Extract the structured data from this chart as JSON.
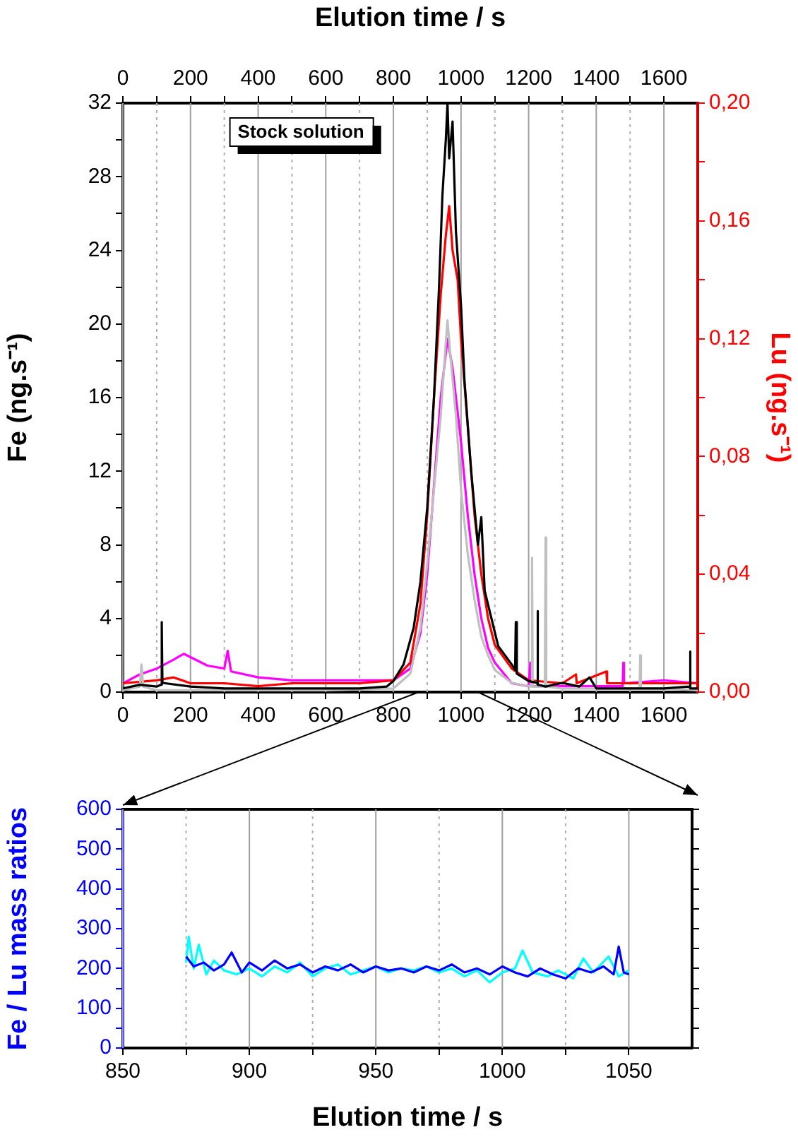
{
  "chart_data": [
    {
      "type": "line",
      "x2label": "Elution time / s",
      "ylabel": "Fe (ng.s⁻¹)",
      "y2label": "Lu (ng.s⁻¹)",
      "annotations": [
        "Stock solution"
      ],
      "xlim": [
        0,
        1700
      ],
      "x2lim": [
        0,
        1700
      ],
      "xticks": [
        0,
        {
          "value": 100,
          "label": null
        },
        200,
        {
          "value": 300,
          "label": null
        },
        400,
        {
          "value": 500,
          "label": null
        },
        600,
        {
          "value": 700,
          "label": null
        },
        800,
        {
          "value": 900,
          "label": null
        },
        1000,
        {
          "value": 1100,
          "label": null
        },
        1200,
        {
          "value": 1300,
          "label": null
        },
        1400,
        {
          "value": 1500,
          "label": null
        },
        1600
      ],
      "x2ticks": [
        0,
        {
          "value": 100,
          "label": null
        },
        200,
        {
          "value": 300,
          "label": null
        },
        400,
        {
          "value": 500,
          "label": null
        },
        600,
        {
          "value": 700,
          "label": null
        },
        800,
        {
          "value": 900,
          "label": null
        },
        1000,
        {
          "value": 1100,
          "label": null
        },
        1200,
        {
          "value": 1300,
          "label": null
        },
        1400,
        {
          "value": 1500,
          "label": null
        },
        1600
      ],
      "ylim": [
        0,
        32
      ],
      "yticks": [
        0,
        {
          "value": 2,
          "label": null
        },
        4,
        {
          "value": 6,
          "label": null
        },
        8,
        {
          "value": 10,
          "label": null
        },
        12,
        {
          "value": 14,
          "label": null
        },
        16,
        {
          "value": 18,
          "label": null
        },
        20,
        {
          "value": 22,
          "label": null
        },
        24,
        {
          "value": 26,
          "label": null
        },
        28,
        {
          "value": 30,
          "label": null
        },
        32
      ],
      "y2lim": [
        0,
        0.2
      ],
      "y2ticks": [
        {
          "value": 0,
          "label": "0,00"
        },
        {
          "value": 0.02,
          "label": null
        },
        {
          "value": 0.04,
          "label": "0,04"
        },
        {
          "value": 0.06,
          "label": null
        },
        {
          "value": 0.08,
          "label": "0,08"
        },
        {
          "value": 0.1,
          "label": null
        },
        {
          "value": 0.12,
          "label": "0,12"
        },
        {
          "value": 0.14,
          "label": null
        },
        {
          "value": 0.16,
          "label": "0,16"
        },
        {
          "value": 0.18,
          "label": null
        },
        {
          "value": 0.2,
          "label": "0,20"
        }
      ],
      "grid": "x",
      "series": [
        {
          "color": "#000000",
          "x": [
            0,
            50,
            100,
            113,
            115,
            117,
            200,
            300,
            400,
            500,
            600,
            700,
            780,
            800,
            830,
            860,
            880,
            900,
            920,
            935,
            945,
            955,
            960,
            965,
            975,
            985,
            1000,
            1010,
            1030,
            1050,
            1060,
            1070,
            1090,
            1110,
            1130,
            1150,
            1160,
            1162,
            1165,
            1200,
            1224,
            1226,
            1228,
            1250,
            1300,
            1350,
            1380,
            1400,
            1500,
            1600,
            1675,
            1677,
            1679,
            1700
          ],
          "values": [
            0.2,
            0.4,
            0.3,
            0.4,
            3.8,
            0.5,
            0.3,
            0.2,
            0.2,
            0.2,
            0.2,
            0.2,
            0.3,
            0.6,
            1.5,
            3.5,
            6,
            10,
            16,
            22,
            27,
            30,
            32,
            29,
            31,
            25,
            21,
            17,
            12,
            8,
            9.5,
            5.5,
            4,
            2.5,
            2,
            1.5,
            1.2,
            3.8,
            1,
            0.6,
            0.5,
            4.4,
            0.4,
            0.3,
            0.5,
            0.3,
            0.8,
            0.2,
            0.2,
            0.2,
            0.3,
            2.2,
            0.2,
            0.2
          ]
        },
        {
          "color": "#c0c0c0",
          "x": [
            0,
            50,
            55,
            60,
            100,
            200,
            400,
            600,
            800,
            850,
            880,
            900,
            920,
            940,
            955,
            960,
            970,
            985,
            1000,
            1020,
            1040,
            1060,
            1080,
            1100,
            1150,
            1208,
            1210,
            1212,
            1248,
            1250,
            1252,
            1300,
            1400,
            1528,
            1530,
            1532,
            1600,
            1700
          ],
          "values": [
            0.1,
            0.3,
            1.5,
            0.3,
            0.1,
            0.1,
            0.1,
            0.1,
            0.2,
            1,
            3.5,
            7,
            11,
            15,
            19,
            20.2,
            18,
            15,
            11,
            7.5,
            5,
            3,
            2,
            1.2,
            0.5,
            0.3,
            7.3,
            0.3,
            0.3,
            8.4,
            0.3,
            0.2,
            0.2,
            0.2,
            2,
            0.2,
            0.2,
            0.1
          ]
        },
        {
          "color": "#ff0000",
          "axis": "y2",
          "x": [
            0,
            100,
            150,
            200,
            300,
            400,
            500,
            600,
            700,
            800,
            850,
            880,
            900,
            920,
            940,
            955,
            965,
            975,
            990,
            1000,
            1020,
            1040,
            1060,
            1080,
            1100,
            1150,
            1200,
            1300,
            1340,
            1342,
            1430,
            1432,
            1500,
            1600,
            1700
          ],
          "values": [
            0.003,
            0.004,
            0.005,
            0.003,
            0.003,
            0.002,
            0.003,
            0.003,
            0.003,
            0.004,
            0.01,
            0.03,
            0.06,
            0.1,
            0.135,
            0.155,
            0.165,
            0.15,
            0.14,
            0.12,
            0.09,
            0.06,
            0.04,
            0.025,
            0.016,
            0.008,
            0.004,
            0.003,
            0.006,
            0.003,
            0.007,
            0.003,
            0.003,
            0.003,
            0.003
          ]
        },
        {
          "color": "#ff00ff",
          "axis": "y2",
          "x": [
            0,
            50,
            100,
            150,
            180,
            250,
            300,
            310,
            320,
            400,
            500,
            600,
            700,
            800,
            850,
            880,
            900,
            920,
            940,
            960,
            975,
            1000,
            1020,
            1040,
            1060,
            1080,
            1100,
            1150,
            1200,
            1205,
            1210,
            1250,
            1478,
            1480,
            1482,
            1600,
            1700
          ],
          "values": [
            0.003,
            0.006,
            0.008,
            0.011,
            0.013,
            0.009,
            0.008,
            0.014,
            0.007,
            0.005,
            0.004,
            0.004,
            0.004,
            0.004,
            0.008,
            0.02,
            0.04,
            0.07,
            0.1,
            0.12,
            0.11,
            0.085,
            0.06,
            0.04,
            0.025,
            0.015,
            0.01,
            0.003,
            0.002,
            0.01,
            0.002,
            0.002,
            0.002,
            0.01,
            0.003,
            0.004,
            0.003
          ]
        }
      ]
    },
    {
      "type": "line",
      "xlabel": "Elution time / s",
      "ylabel": "Fe / Lu mass ratios",
      "xlim": [
        850,
        1075
      ],
      "xticks": [
        850,
        {
          "value": 875,
          "label": null
        },
        900,
        {
          "value": 925,
          "label": null
        },
        950,
        {
          "value": 975,
          "label": null
        },
        1000,
        {
          "value": 1025,
          "label": null
        },
        1050
      ],
      "ylim": [
        0,
        600
      ],
      "yticks": [
        0,
        {
          "value": 50,
          "label": null
        },
        100,
        {
          "value": 150,
          "label": null
        },
        200,
        {
          "value": 250,
          "label": null
        },
        300,
        {
          "value": 350,
          "label": null
        },
        400,
        {
          "value": 450,
          "label": null
        },
        500,
        {
          "value": 550,
          "label": null
        },
        600
      ],
      "grid": "x",
      "series": [
        {
          "color": "#0000ff",
          "x": [
            875,
            878,
            882,
            886,
            890,
            893,
            897,
            900,
            905,
            910,
            915,
            920,
            925,
            930,
            935,
            940,
            945,
            950,
            955,
            960,
            965,
            970,
            975,
            980,
            985,
            990,
            995,
            1000,
            1005,
            1010,
            1015,
            1020,
            1025,
            1030,
            1035,
            1040,
            1044,
            1046,
            1048,
            1050
          ],
          "values": [
            230,
            205,
            215,
            195,
            210,
            240,
            190,
            215,
            195,
            220,
            200,
            210,
            190,
            205,
            195,
            210,
            190,
            205,
            195,
            200,
            190,
            205,
            195,
            210,
            190,
            200,
            185,
            205,
            190,
            180,
            200,
            185,
            175,
            200,
            190,
            205,
            185,
            255,
            190,
            185
          ]
        },
        {
          "color": "#00ffff",
          "x": [
            875,
            876,
            878,
            880,
            883,
            886,
            890,
            895,
            900,
            905,
            910,
            915,
            920,
            925,
            930,
            935,
            940,
            945,
            950,
            955,
            960,
            965,
            970,
            975,
            980,
            985,
            990,
            995,
            1000,
            1005,
            1008,
            1012,
            1018,
            1022,
            1028,
            1032,
            1036,
            1042,
            1046,
            1050
          ],
          "values": [
            215,
            280,
            200,
            260,
            185,
            220,
            195,
            185,
            200,
            180,
            205,
            190,
            215,
            180,
            200,
            210,
            185,
            195,
            205,
            190,
            200,
            195,
            205,
            190,
            200,
            180,
            195,
            165,
            190,
            200,
            245,
            190,
            180,
            195,
            175,
            225,
            190,
            230,
            180,
            195
          ]
        }
      ]
    }
  ]
}
